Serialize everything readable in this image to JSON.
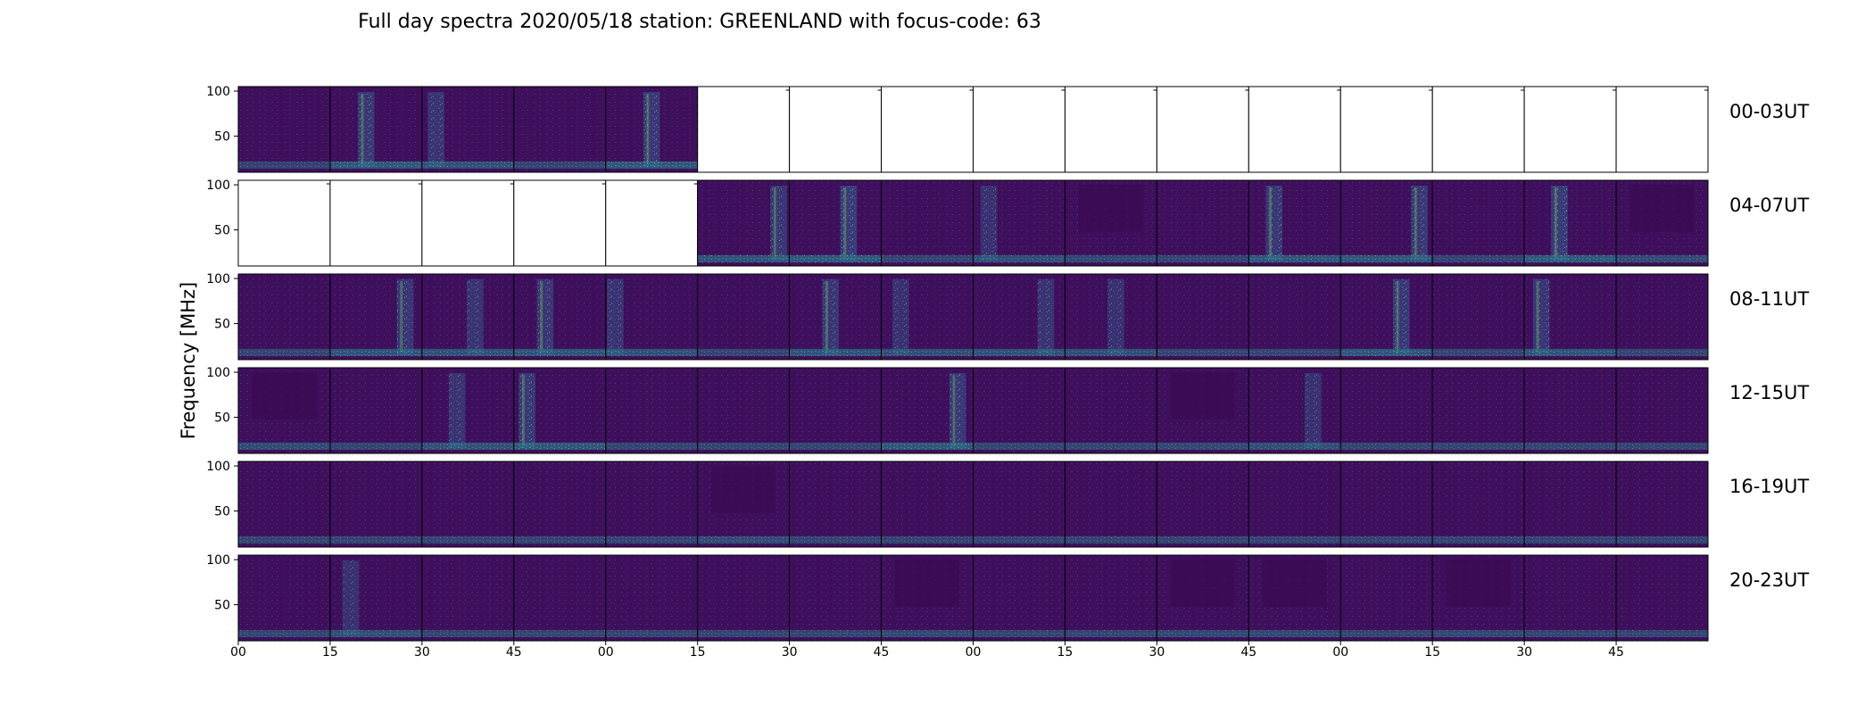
{
  "chart_data": {
    "type": "heatmap",
    "title": "Full day spectra 2020/05/18 station: GREENLAND with focus-code: 63",
    "ylabel": "Frequency [MHz]",
    "xlabel": "",
    "ylim": [
      10,
      105
    ],
    "y_ticks": [
      50,
      100
    ],
    "x_tick_labels": [
      "00",
      "15",
      "30",
      "45",
      "00",
      "15",
      "30",
      "45",
      "00",
      "15",
      "30",
      "45",
      "00",
      "15",
      "30",
      "45"
    ],
    "columns_per_row": 16,
    "minutes_per_panel": 15,
    "colormap": [
      "#440154",
      "#31688e",
      "#35b779",
      "#fde725"
    ],
    "background_color": "#3f0f5c",
    "rows": [
      {
        "label": "00-03UT",
        "available": [
          1,
          1,
          1,
          1,
          1,
          0,
          0,
          0,
          0,
          0,
          0,
          0,
          0,
          0,
          0,
          0
        ],
        "activity": [
          0.25,
          0.6,
          0.5,
          0.3,
          0.6,
          0,
          0,
          0,
          0,
          0,
          0,
          0,
          0,
          0,
          0,
          0
        ]
      },
      {
        "label": "04-07UT",
        "available": [
          0,
          0,
          0,
          0,
          0,
          1,
          1,
          1,
          1,
          1,
          1,
          1,
          1,
          1,
          1,
          1
        ],
        "activity": [
          0,
          0,
          0,
          0,
          0,
          0.55,
          0.65,
          0.3,
          0.45,
          0.35,
          0.3,
          0.6,
          0.6,
          0.3,
          0.65,
          0.4
        ]
      },
      {
        "label": "08-11UT",
        "available": [
          1,
          1,
          1,
          1,
          1,
          1,
          1,
          1,
          1,
          1,
          1,
          1,
          1,
          1,
          1,
          1
        ],
        "activity": [
          0.3,
          0.55,
          0.5,
          0.55,
          0.5,
          0.3,
          0.55,
          0.45,
          0.5,
          0.45,
          0.3,
          0.3,
          0.6,
          0.3,
          0.55,
          0.3
        ]
      },
      {
        "label": "12-15UT",
        "available": [
          1,
          1,
          1,
          1,
          1,
          1,
          1,
          1,
          1,
          1,
          1,
          1,
          1,
          1,
          1,
          1
        ],
        "activity": [
          0.4,
          0.3,
          0.5,
          0.6,
          0.3,
          0.3,
          0.3,
          0.6,
          0.3,
          0.3,
          0.35,
          0.45,
          0.3,
          0.3,
          0.3,
          0.3
        ]
      },
      {
        "label": "16-19UT",
        "available": [
          1,
          1,
          1,
          1,
          1,
          1,
          1,
          1,
          1,
          1,
          1,
          1,
          1,
          1,
          1,
          1
        ],
        "activity": [
          0.3,
          0.3,
          0.3,
          0.3,
          0.3,
          0.4,
          0.3,
          0.3,
          0.3,
          0.3,
          0.3,
          0.3,
          0.3,
          0.3,
          0.3,
          0.3
        ]
      },
      {
        "label": "20-23UT",
        "available": [
          1,
          1,
          1,
          1,
          1,
          1,
          1,
          1,
          1,
          1,
          1,
          1,
          1,
          1,
          1,
          1
        ],
        "activity": [
          0.3,
          0.45,
          0.3,
          0.3,
          0.3,
          0.3,
          0.3,
          0.35,
          0.3,
          0.3,
          0.35,
          0.35,
          0.3,
          0.35,
          0.3,
          0.3
        ]
      }
    ]
  }
}
